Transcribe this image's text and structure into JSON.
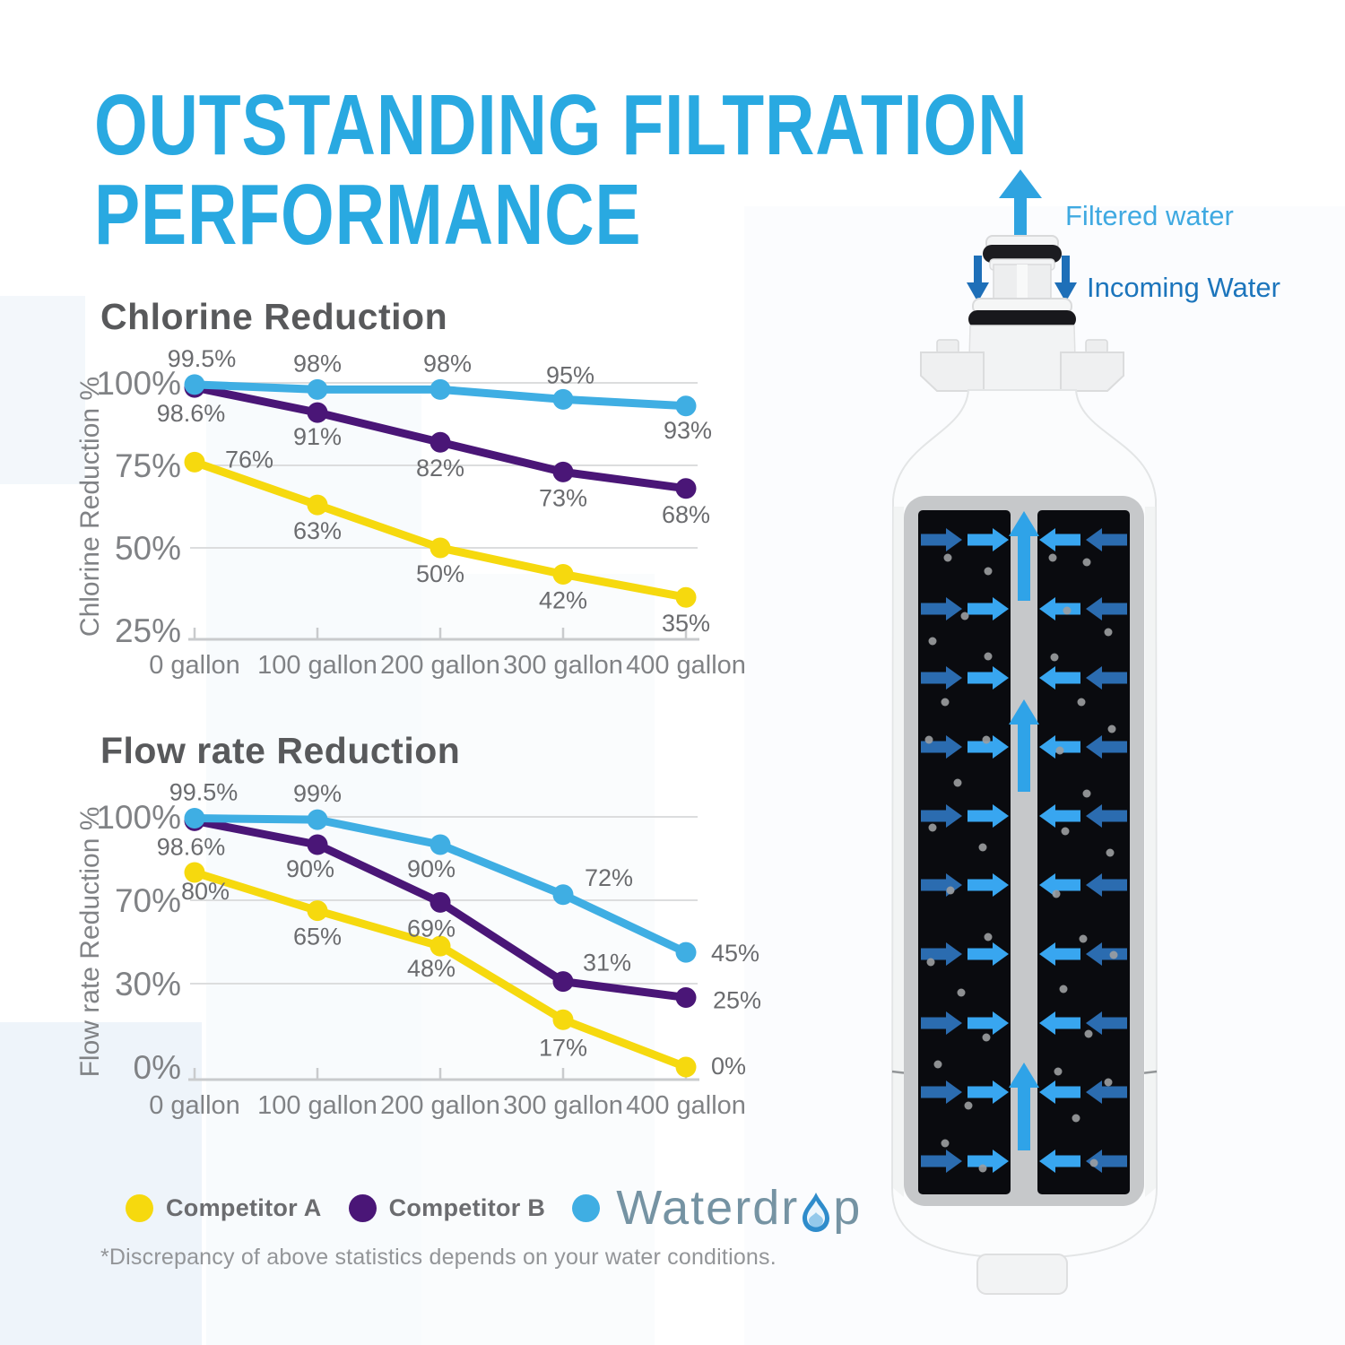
{
  "title": {
    "line1": "OUTSTANDING FILTRATION",
    "line2": "PERFORMANCE",
    "color": "#29A9E1"
  },
  "footnote": "*Discrepancy of above statistics depends on your water conditions.",
  "legend": {
    "items": [
      {
        "name": "Competitor A",
        "color": "#F6D90E"
      },
      {
        "name": "Competitor B",
        "color": "#4A1677"
      },
      {
        "name": "Waterdrop",
        "color": "#3FAEE3"
      }
    ],
    "logo": {
      "prefix": "Waterdr",
      "suffix": "p",
      "full_name": "Waterdrop",
      "text_color": "#7593A3",
      "drop_color": "#2F8CCB"
    }
  },
  "filter_diagram": {
    "filtered_water_label": "Filtered water",
    "incoming_water_label": "Incoming Water",
    "filtered_label_color": "#3FA9E1",
    "incoming_label_color": "#1C75BC",
    "filtered_arrow_color": "#2FA3E0",
    "incoming_arrow_color": "#1E6FB8",
    "panel_arrow_light": "#38A6F0",
    "panel_arrow_dark": "#2B6CB0",
    "channel_arrow_color": "#2FA3E8",
    "dot_color": "#9C9EA1",
    "panel_color": "#0A0B0F",
    "frame_color": "#C6C8CA",
    "body_color": "#FBFCFD"
  },
  "chart_data": [
    {
      "type": "line",
      "title": "Chlorine Reduction",
      "xlabel": "",
      "ylabel": "Chlorine Reduction %",
      "categories": [
        "0 gallon",
        "100 gallon",
        "200 gallon",
        "300 gallon",
        "400 gallon"
      ],
      "yticks": [
        100,
        75,
        50,
        25
      ],
      "ytick_labels": [
        "100%",
        "75%",
        "50%",
        "25%"
      ],
      "ylim": [
        25,
        100
      ],
      "grid": "horizontal",
      "legend_position": "bottom",
      "series": [
        {
          "name": "Waterdrop",
          "color": "#3FAEE3",
          "values": [
            99.5,
            98,
            98,
            95,
            93
          ],
          "labels": [
            "99.5%",
            "98%",
            "98%",
            "95%",
            "93%"
          ],
          "label_offsets": [
            [
              8,
              -20
            ],
            [
              0,
              -20
            ],
            [
              8,
              -20
            ],
            [
              8,
              -18
            ],
            [
              2,
              36
            ]
          ]
        },
        {
          "name": "Competitor B",
          "color": "#4A1677",
          "values": [
            98.6,
            91,
            82,
            73,
            68
          ],
          "labels": [
            "98.6%",
            "91%",
            "82%",
            "73%",
            "68%"
          ],
          "label_offsets": [
            [
              -4,
              38
            ],
            [
              0,
              36
            ],
            [
              0,
              38
            ],
            [
              0,
              38
            ],
            [
              0,
              38
            ]
          ]
        },
        {
          "name": "Competitor A",
          "color": "#F6D90E",
          "values": [
            76,
            63,
            50,
            42,
            35
          ],
          "labels": [
            "76%",
            "63%",
            "50%",
            "42%",
            "35%"
          ],
          "label_offsets": [
            [
              34,
              6
            ],
            [
              0,
              38
            ],
            [
              0,
              38
            ],
            [
              0,
              38
            ],
            [
              0,
              38
            ]
          ]
        }
      ]
    },
    {
      "type": "line",
      "title": "Flow rate Reduction",
      "xlabel": "",
      "ylabel": "Flow rate Reduction %",
      "categories": [
        "0 gallon",
        "100 gallon",
        "200 gallon",
        "300 gallon",
        "400 gallon"
      ],
      "yticks": [
        100,
        70,
        30,
        0
      ],
      "ytick_labels": [
        "100%",
        "70%",
        "30%",
        "0%"
      ],
      "ylim": [
        0,
        100
      ],
      "grid": "horizontal",
      "legend_position": "bottom",
      "series": [
        {
          "name": "Waterdrop",
          "color": "#3FAEE3",
          "values": [
            99.5,
            99,
            90,
            72,
            45
          ],
          "labels": [
            "99.5%",
            "99%",
            "90%",
            "72%",
            "45%"
          ],
          "label_offsets": [
            [
              10,
              -20
            ],
            [
              0,
              -20
            ],
            [
              -10,
              36
            ],
            [
              24,
              -10
            ],
            [
              28,
              10
            ]
          ]
        },
        {
          "name": "Competitor B",
          "color": "#4A1677",
          "values": [
            98.6,
            90,
            69,
            31,
            25
          ],
          "labels": [
            "98.6%",
            "90%",
            "69%",
            "31%",
            "25%"
          ],
          "label_offsets": [
            [
              -4,
              38
            ],
            [
              -8,
              36
            ],
            [
              -10,
              38
            ],
            [
              22,
              -12
            ],
            [
              30,
              12
            ]
          ]
        },
        {
          "name": "Competitor A",
          "color": "#F6D90E",
          "values": [
            80,
            65,
            48,
            17,
            0
          ],
          "labels": [
            "80%",
            "65%",
            "48%",
            "17%",
            "0%"
          ],
          "label_offsets": [
            [
              12,
              30
            ],
            [
              0,
              38
            ],
            [
              -10,
              34
            ],
            [
              0,
              40
            ],
            [
              28,
              8
            ]
          ]
        }
      ]
    }
  ]
}
